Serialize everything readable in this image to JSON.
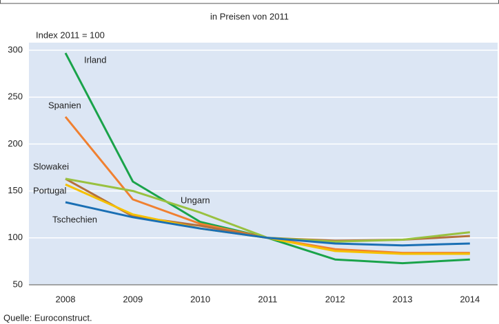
{
  "chart_data": {
    "type": "line",
    "subtitle": "in Preisen von 2011",
    "y_label": "Index 2011 = 100",
    "source": "Quelle: Euroconstruct.",
    "categories": [
      "2008",
      "2009",
      "2010",
      "2011",
      "2012",
      "2013",
      "2014"
    ],
    "ylim": [
      50,
      300
    ],
    "yticks": [
      50,
      100,
      150,
      200,
      250,
      300
    ],
    "grid": true,
    "series": [
      {
        "name": "Irland",
        "color": "#1aa34a",
        "values": [
          297,
          160,
          117,
          100,
          77,
          73,
          77
        ]
      },
      {
        "name": "Spanien",
        "color": "#f08030",
        "values": [
          229,
          141,
          115,
          100,
          88,
          84,
          84
        ]
      },
      {
        "name": "Slowakei",
        "color": "#b5703c",
        "values": [
          163,
          123,
          113,
          100,
          97,
          98,
          102
        ]
      },
      {
        "name": "Ungarn",
        "color": "#99c140",
        "values": [
          163,
          150,
          127,
          100,
          96,
          98,
          106
        ]
      },
      {
        "name": "Portugal",
        "color": "#f5c000",
        "values": [
          157,
          125,
          110,
          100,
          86,
          83,
          83
        ]
      },
      {
        "name": "Tschechien",
        "color": "#1a6fb4",
        "values": [
          138,
          122,
          110,
          100,
          94,
          92,
          94
        ]
      }
    ]
  }
}
